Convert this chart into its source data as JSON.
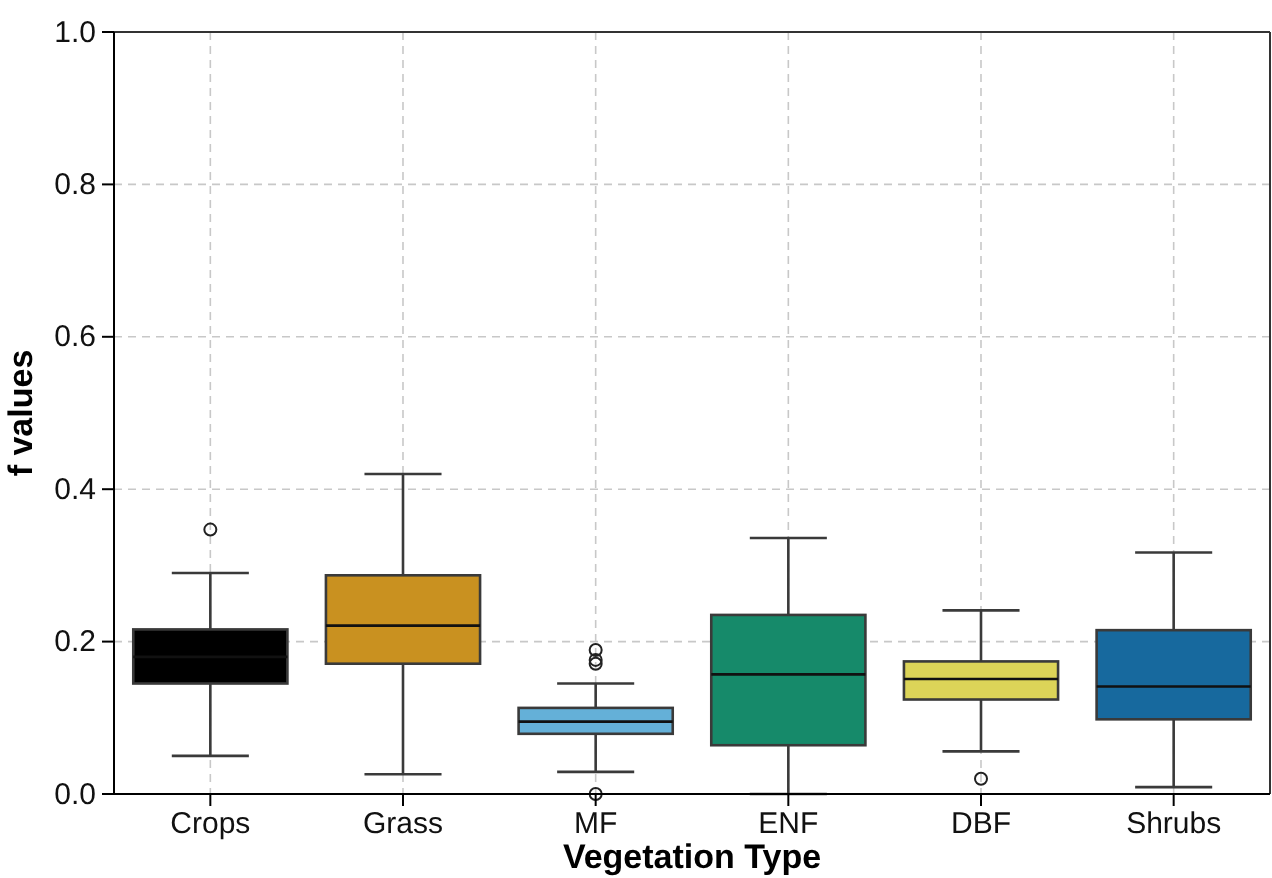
{
  "chart_data": {
    "type": "box",
    "xlabel": "Vegetation Type",
    "ylabel": "f values",
    "categories": [
      "Crops",
      "Grass",
      "MF",
      "ENF",
      "DBF",
      "Shrubs"
    ],
    "colors": [
      "#000000",
      "#c99120",
      "#64b0d8",
      "#168a6a",
      "#dcd458",
      "#17699e"
    ],
    "boxes": [
      {
        "low": 0.05,
        "q1": 0.145,
        "median": 0.18,
        "q3": 0.216,
        "high": 0.29,
        "outliers": [
          0.347
        ]
      },
      {
        "low": 0.026,
        "q1": 0.171,
        "median": 0.221,
        "q3": 0.287,
        "high": 0.42
      },
      {
        "low": 0.029,
        "q1": 0.079,
        "median": 0.095,
        "q3": 0.113,
        "high": 0.145,
        "outliers": [
          0.171,
          0.176,
          0.189,
          0.0
        ]
      },
      {
        "low": 0.0,
        "q1": 0.064,
        "median": 0.157,
        "q3": 0.235,
        "high": 0.336
      },
      {
        "low": 0.056,
        "q1": 0.124,
        "median": 0.151,
        "q3": 0.174,
        "high": 0.241,
        "outliers": [
          0.02
        ]
      },
      {
        "low": 0.009,
        "q1": 0.098,
        "median": 0.141,
        "q3": 0.215,
        "high": 0.317
      }
    ],
    "ylim": [
      0,
      1
    ],
    "yticks": [
      {
        "value": 0,
        "label": "0.0"
      },
      {
        "value": 0.2,
        "label": "0.2"
      },
      {
        "value": 0.4,
        "label": "0.4"
      },
      {
        "value": 0.6,
        "label": "0.6"
      },
      {
        "value": 0.8,
        "label": "0.8"
      },
      {
        "value": 1,
        "label": "1.0"
      }
    ],
    "grid": true
  }
}
